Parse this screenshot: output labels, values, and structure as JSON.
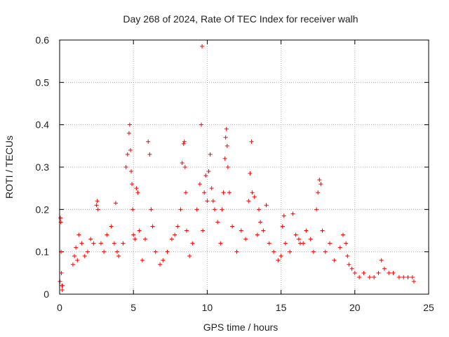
{
  "chart_data": {
    "type": "scatter",
    "title": "Day 268 of 2024, Rate Of TEC Index for receiver walh",
    "xlabel": "GPS time / hours",
    "ylabel": "ROTI / TECUs",
    "xlim": [
      0,
      25
    ],
    "ylim": [
      0,
      0.6
    ],
    "x_ticks": [
      0,
      5,
      10,
      15,
      20,
      25
    ],
    "y_ticks": [
      0,
      0.1,
      0.2,
      0.3,
      0.4,
      0.5,
      0.6
    ],
    "x_tick_labels": [
      "0",
      "5",
      "10",
      "15",
      "20",
      "25"
    ],
    "y_tick_labels": [
      "0",
      "0.1",
      "0.2",
      "0.3",
      "0.4",
      "0.5",
      "0.6"
    ],
    "grid": true,
    "marker": "+",
    "color": "#ff0000",
    "series": [
      {
        "name": "ROTI",
        "x": [
          0.02,
          0.05,
          0.08,
          0.1,
          0.12,
          0.15,
          0.18,
          0.2,
          0.9,
          1.0,
          1.1,
          1.2,
          1.3,
          1.5,
          1.7,
          1.9,
          2.1,
          2.3,
          2.5,
          2.55,
          2.6,
          2.8,
          3.0,
          3.2,
          3.5,
          3.7,
          3.8,
          3.9,
          4.0,
          4.3,
          4.5,
          4.6,
          4.7,
          4.75,
          4.8,
          4.85,
          4.9,
          4.95,
          5.0,
          5.1,
          5.2,
          5.3,
          5.4,
          5.6,
          5.8,
          6.0,
          6.1,
          6.2,
          6.3,
          6.5,
          6.8,
          7.0,
          7.3,
          7.6,
          7.8,
          8.0,
          8.2,
          8.3,
          8.4,
          8.45,
          8.5,
          8.55,
          8.6,
          8.8,
          9.0,
          9.3,
          9.5,
          9.6,
          9.65,
          9.7,
          9.8,
          9.9,
          10.0,
          10.1,
          10.2,
          10.3,
          10.4,
          10.5,
          10.7,
          10.9,
          11.0,
          11.1,
          11.2,
          11.25,
          11.3,
          11.35,
          11.4,
          11.5,
          11.7,
          12.0,
          12.3,
          12.6,
          12.8,
          12.9,
          13.0,
          13.05,
          13.2,
          13.4,
          13.5,
          13.6,
          13.8,
          14.0,
          14.2,
          14.5,
          14.8,
          15.0,
          15.1,
          15.2,
          15.3,
          15.6,
          15.8,
          16.0,
          16.2,
          16.3,
          16.5,
          16.7,
          17.0,
          17.2,
          17.4,
          17.5,
          17.6,
          17.7,
          17.8,
          18.0,
          18.3,
          18.6,
          19.0,
          19.2,
          19.4,
          19.5,
          19.6,
          19.8,
          20.0,
          20.3,
          20.6,
          21.0,
          21.3,
          21.6,
          21.8,
          22.0,
          22.3,
          22.6,
          23.0,
          23.3,
          23.6,
          23.9,
          24.0
        ],
        "y": [
          0.03,
          0.18,
          0.17,
          0.1,
          0.05,
          0.02,
          0.01,
          0.02,
          0.07,
          0.09,
          0.11,
          0.08,
          0.14,
          0.12,
          0.09,
          0.1,
          0.13,
          0.12,
          0.21,
          0.22,
          0.2,
          0.12,
          0.1,
          0.14,
          0.16,
          0.12,
          0.215,
          0.1,
          0.09,
          0.12,
          0.3,
          0.33,
          0.38,
          0.4,
          0.34,
          0.29,
          0.26,
          0.2,
          0.14,
          0.13,
          0.25,
          0.24,
          0.15,
          0.08,
          0.13,
          0.36,
          0.33,
          0.2,
          0.16,
          0.1,
          0.07,
          0.08,
          0.1,
          0.13,
          0.14,
          0.16,
          0.2,
          0.31,
          0.355,
          0.36,
          0.3,
          0.24,
          0.15,
          0.09,
          0.12,
          0.2,
          0.26,
          0.4,
          0.585,
          0.15,
          0.24,
          0.28,
          0.22,
          0.29,
          0.33,
          0.25,
          0.22,
          0.2,
          0.17,
          0.12,
          0.2,
          0.24,
          0.32,
          0.37,
          0.39,
          0.35,
          0.3,
          0.24,
          0.16,
          0.1,
          0.15,
          0.13,
          0.22,
          0.285,
          0.36,
          0.24,
          0.23,
          0.14,
          0.2,
          0.17,
          0.15,
          0.21,
          0.12,
          0.1,
          0.08,
          0.09,
          0.16,
          0.185,
          0.12,
          0.1,
          0.19,
          0.14,
          0.13,
          0.12,
          0.12,
          0.15,
          0.13,
          0.1,
          0.2,
          0.24,
          0.27,
          0.26,
          0.15,
          0.1,
          0.12,
          0.08,
          0.11,
          0.14,
          0.12,
          0.09,
          0.07,
          0.06,
          0.05,
          0.04,
          0.05,
          0.04,
          0.04,
          0.05,
          0.08,
          0.06,
          0.05,
          0.05,
          0.04,
          0.04,
          0.04,
          0.04,
          0.03
        ]
      }
    ]
  }
}
